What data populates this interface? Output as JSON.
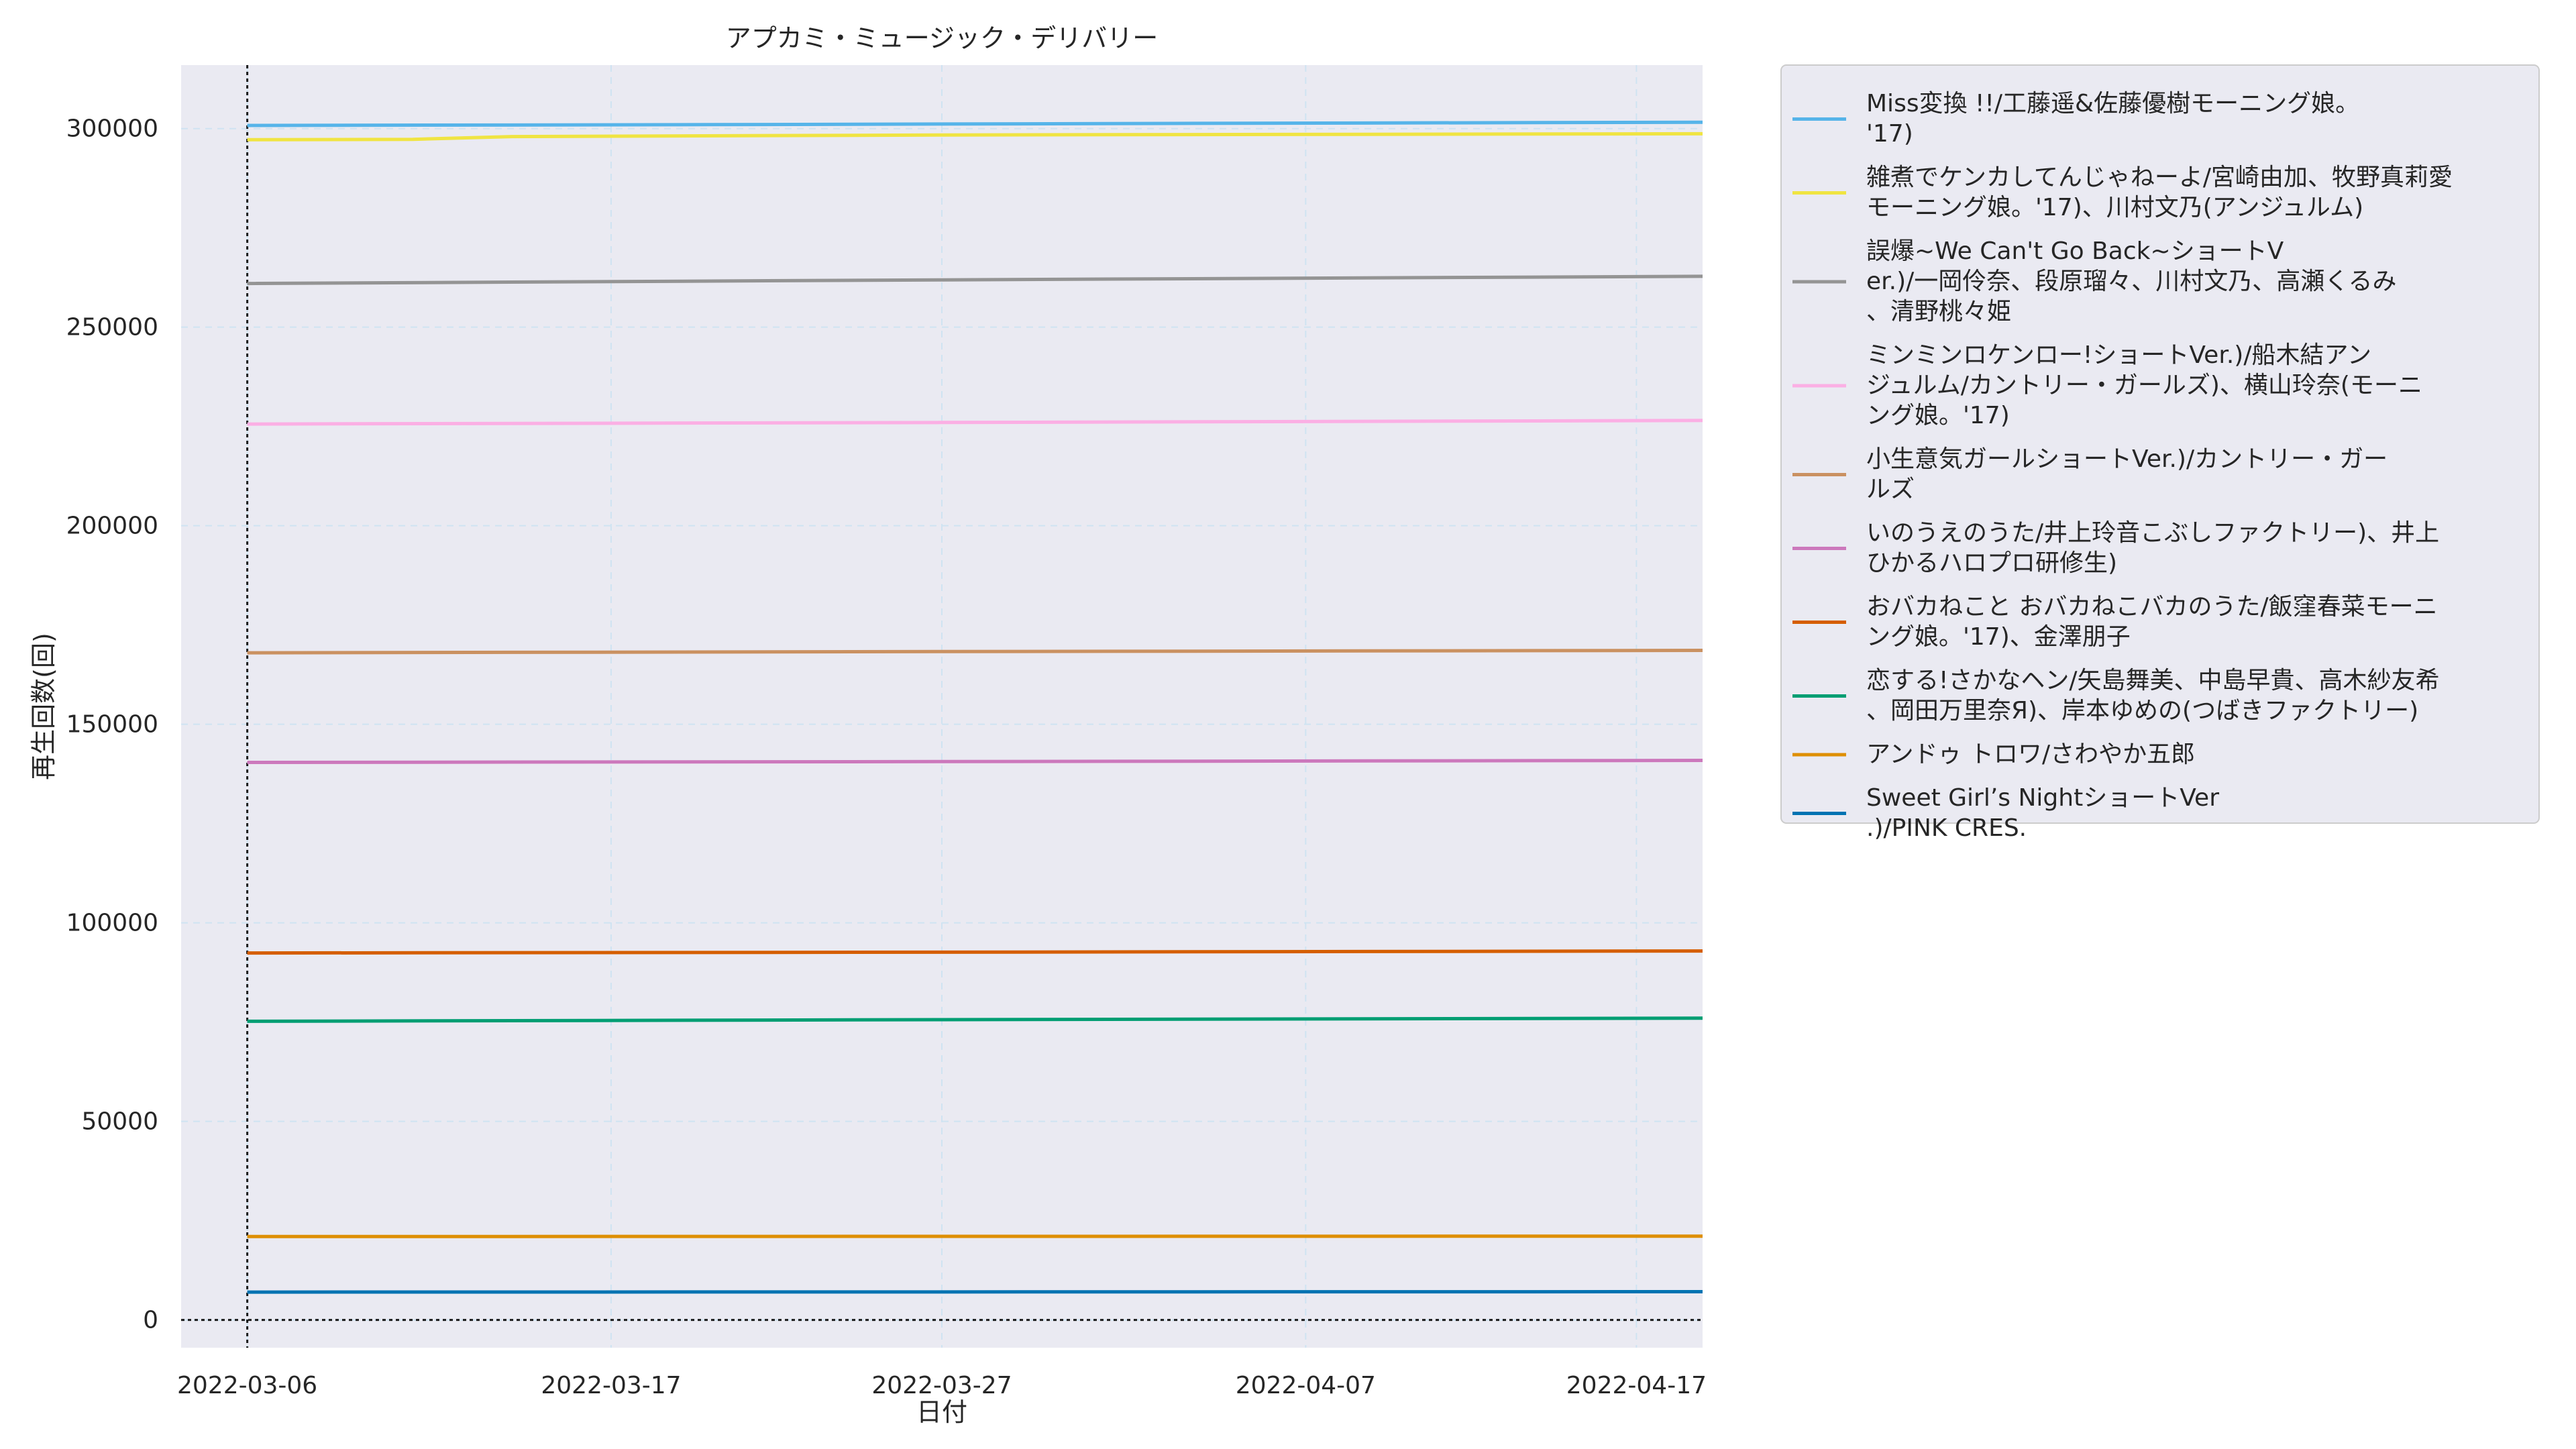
{
  "chart_data": {
    "type": "line",
    "title": "アプカミ・ミュージック・デリバリー",
    "xlabel": "日付",
    "ylabel": "再生回数(回)",
    "x_range": [
      "2022-03-04",
      "2022-04-19"
    ],
    "ylim": [
      -7000,
      316000
    ],
    "x_ticks": [
      "2022-03-06",
      "2022-03-17",
      "2022-03-27",
      "2022-04-07",
      "2022-04-17"
    ],
    "y_ticks": [
      0,
      50000,
      100000,
      150000,
      200000,
      250000,
      300000
    ],
    "grid": true,
    "legend_position": "outside-right",
    "reference_lines": {
      "x": "2022-03-06",
      "y": 0
    },
    "series": [
      {
        "name": "Miss変換 !!/工藤遥&佐藤優樹モーニング娘。'17)",
        "legend_lines": [
          "Miss変換 !!/工藤遥&佐藤優樹モーニング娘。",
          "'17)"
        ],
        "color": "#56B4E9",
        "points": [
          [
            "2022-03-06",
            300800
          ],
          [
            "2022-03-20",
            301000
          ],
          [
            "2022-04-03",
            301300
          ],
          [
            "2022-04-19",
            301600
          ]
        ]
      },
      {
        "name": "雑煮でケンカしてんじゃねーよ/宮崎由加、牧野真莉愛モーニング娘。'17)、川村文乃(アンジュルム)",
        "legend_lines": [
          "雑煮でケンカしてんじゃねーよ/宮崎由加、牧野真莉愛",
          "モーニング娘。'17)、川村文乃(アンジュルム)"
        ],
        "color": "#F0E442",
        "points": [
          [
            "2022-03-06",
            297200
          ],
          [
            "2022-03-11",
            297300
          ],
          [
            "2022-03-14",
            298000
          ],
          [
            "2022-03-27",
            298400
          ],
          [
            "2022-04-19",
            298700
          ]
        ]
      },
      {
        "name": "誤爆~We Can't Go Back~ショートVer.)/一岡伶奈、段原瑠々、川村文乃、高瀬くるみ、清野桃々姫",
        "legend_lines": [
          "誤爆~We Can't Go Back~ショートV",
          "er.)/一岡伶奈、段原瑠々、川村文乃、高瀬くるみ",
          "、清野桃々姫"
        ],
        "color": "#949494",
        "points": [
          [
            "2022-03-06",
            261000
          ],
          [
            "2022-03-27",
            261900
          ],
          [
            "2022-04-19",
            262800
          ]
        ]
      },
      {
        "name": "ミンミンロケンロー!ショートVer.)/船木結アンジュルム/カントリー・ガールズ)、横山玲奈(モーニング娘。'17)",
        "legend_lines": [
          "ミンミンロケンロー!ショートVer.)/船木結アン",
          "ジュルム/カントリー・ガールズ)、横山玲奈(モーニ",
          "ング娘。'17)"
        ],
        "color": "#FBAFE4",
        "points": [
          [
            "2022-03-06",
            225600
          ],
          [
            "2022-03-27",
            226000
          ],
          [
            "2022-04-19",
            226500
          ]
        ]
      },
      {
        "name": "小生意気ガールショートVer.)/カントリー・ガールズ",
        "legend_lines": [
          "小生意気ガールショートVer.)/カントリー・ガー",
          "ルズ"
        ],
        "color": "#CA9161",
        "points": [
          [
            "2022-03-06",
            168000
          ],
          [
            "2022-03-27",
            168300
          ],
          [
            "2022-04-19",
            168600
          ]
        ]
      },
      {
        "name": "いのうえのうた/井上玲音こぶしファクトリー)、井上ひかるハロプロ研修生)",
        "legend_lines": [
          "いのうえのうた/井上玲音こぶしファクトリー)、井上",
          "ひかるハロプロ研修生)"
        ],
        "color": "#CC78BC",
        "points": [
          [
            "2022-03-06",
            140400
          ],
          [
            "2022-03-27",
            140600
          ],
          [
            "2022-04-19",
            140900
          ]
        ]
      },
      {
        "name": "おバカねこと おバカねこバカのうた/飯窪春菜モーニング娘。'17)、金澤朋子",
        "legend_lines": [
          "おバカねこと おバカねこバカのうた/飯窪春菜モーニ",
          "ング娘。'17)、金澤朋子"
        ],
        "color": "#D55E00",
        "points": [
          [
            "2022-03-06",
            92400
          ],
          [
            "2022-03-27",
            92600
          ],
          [
            "2022-04-19",
            92900
          ]
        ]
      },
      {
        "name": "恋する!さかなヘン/矢島舞美、中島早貴、高木紗友希、岡田万里奈Я)、岸本ゆめの(つばきファクトリー)",
        "legend_lines": [
          "恋する!さかなヘン/矢島舞美、中島早貴、高木紗友希",
          "、岡田万里奈Я)、岸本ゆめの(つばきファクトリー)"
        ],
        "color": "#029E73",
        "points": [
          [
            "2022-03-06",
            75200
          ],
          [
            "2022-03-27",
            75600
          ],
          [
            "2022-04-19",
            76000
          ]
        ]
      },
      {
        "name": "アンドゥ トロワ/さわやか五郎",
        "legend_lines": [
          "アンドゥ トロワ/さわやか五郎"
        ],
        "color": "#DE8F05",
        "points": [
          [
            "2022-03-06",
            21000
          ],
          [
            "2022-04-19",
            21100
          ]
        ]
      },
      {
        "name": "Sweet Girl’s NightショートVer.)/PINK CRES.",
        "legend_lines": [
          "Sweet Girl’s NightショートVer",
          ".)/PINK CRES."
        ],
        "color": "#0173B2",
        "points": [
          [
            "2022-03-06",
            7000
          ],
          [
            "2022-04-19",
            7100
          ]
        ]
      }
    ]
  }
}
